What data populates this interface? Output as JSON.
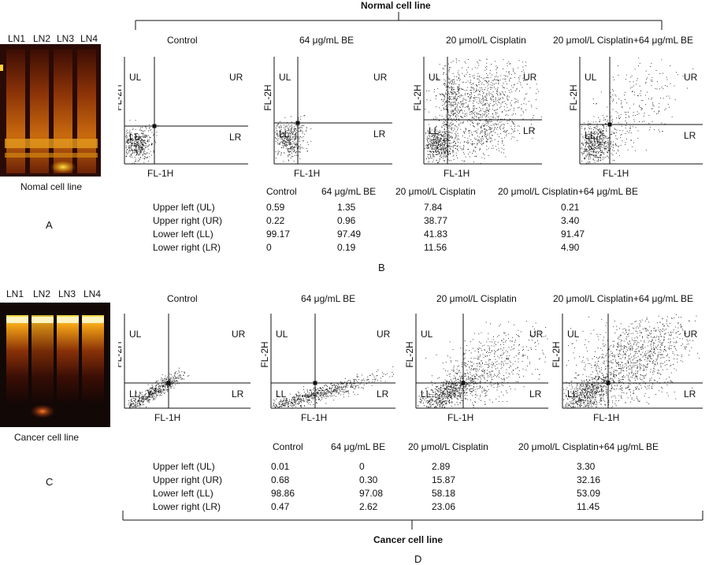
{
  "top": {
    "bracket_label": "Normal cell line",
    "gel": {
      "lane_labels": [
        "LN1",
        "LN2",
        "LN3",
        "LN4"
      ],
      "caption": "Nomal cell line",
      "panel_letter": "A"
    },
    "plots": [
      {
        "title": "Control",
        "xlabel": "FL-1H",
        "ylabel": "FL-2H",
        "q": [
          "UL",
          "UR",
          "LL",
          "LR"
        ]
      },
      {
        "title": "64 μg/mL BE",
        "xlabel": "FL-1H",
        "ylabel": "FL-2H",
        "q": [
          "UL",
          "UR",
          "LL",
          "LR"
        ]
      },
      {
        "title": "20 μmol/L Cisplatin",
        "xlabel": "FL-1H",
        "ylabel": "FL-2H",
        "q": [
          "UL",
          "UR",
          "LL",
          "LR"
        ]
      },
      {
        "title": "20 μmol/L Cisplatin+64 μg/mL BE",
        "xlabel": "FL-1H",
        "ylabel": "FL-2H",
        "q": [
          "UL",
          "UR",
          "LL",
          "LR"
        ]
      }
    ],
    "table": {
      "columns": [
        "Control",
        "64 μg/mL BE",
        "20 μmol/L Cisplatin",
        "20 μmol/L Cisplatin+64 μg/mL BE"
      ],
      "rows": [
        {
          "label": "Upper left (UL)",
          "values": [
            "0.59",
            "1.35",
            "7.84",
            "0.21"
          ]
        },
        {
          "label": "Upper right (UR)",
          "values": [
            "0.22",
            "0.96",
            "38.77",
            "3.40"
          ]
        },
        {
          "label": "Lower left (LL)",
          "values": [
            "99.17",
            "97.49",
            "41.83",
            "91.47"
          ]
        },
        {
          "label": "Lower right (LR)",
          "values": [
            "0",
            "0.19",
            "11.56",
            "4.90"
          ]
        }
      ]
    },
    "panel_letter": "B"
  },
  "bottom": {
    "bracket_label": "Cancer cell line",
    "gel": {
      "lane_labels": [
        "LN1",
        "LN2",
        "LN3",
        "LN4"
      ],
      "caption": "Cancer cell line",
      "panel_letter": "C"
    },
    "plots": [
      {
        "title": "Control",
        "xlabel": "FL-1H",
        "ylabel": "FL-2H",
        "q": [
          "UL",
          "UR",
          "LL",
          "LR"
        ]
      },
      {
        "title": "64 μg/mL BE",
        "xlabel": "FL-1H",
        "ylabel": "FL-2H",
        "q": [
          "UL",
          "UR",
          "LL",
          "LR"
        ]
      },
      {
        "title": "20 μmol/L Cisplatin",
        "xlabel": "FL-1H",
        "ylabel": "FL-2H",
        "q": [
          "UL",
          "UR",
          "LL",
          "LR"
        ]
      },
      {
        "title": "20 μmol/L Cisplatin+64 μg/mL BE",
        "xlabel": "FL-1H",
        "ylabel": "FL-2H",
        "q": [
          "UL",
          "UR",
          "LL",
          "LR"
        ]
      }
    ],
    "table": {
      "columns": [
        "Control",
        "64 μg/mL BE",
        "20 μmol/L Cisplatin",
        "20 μmol/L Cisplatin+64 μg/mL BE"
      ],
      "rows": [
        {
          "label": "Upper left (UL)",
          "values": [
            "0.01",
            "0",
            "2.89",
            "3.30"
          ]
        },
        {
          "label": "Upper right (UR)",
          "values": [
            "0.68",
            "0.30",
            "15.87",
            "32.16"
          ]
        },
        {
          "label": "Lower left (LL)",
          "values": [
            "98.86",
            "97.08",
            "58.18",
            "53.09"
          ]
        },
        {
          "label": "Lower right (LR)",
          "values": [
            "0.47",
            "2.62",
            "23.06",
            "11.45"
          ]
        }
      ]
    },
    "panel_letter": "D"
  },
  "colors": {
    "gel_background": "#120805",
    "band_glow": "#f5a516",
    "band_bright": "#ffe24a"
  }
}
